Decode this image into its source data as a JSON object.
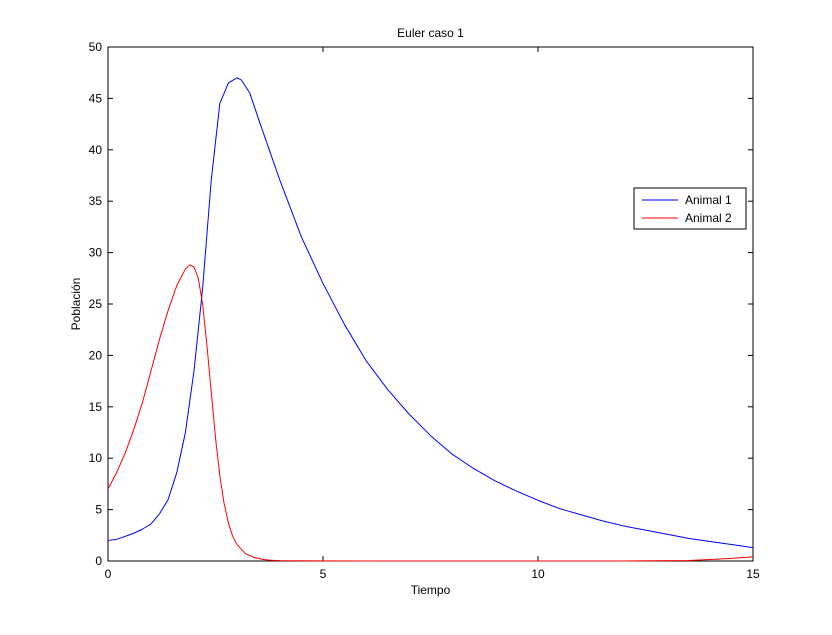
{
  "chart_data": {
    "type": "line",
    "title": "Euler caso 1",
    "xlabel": "Tiempo",
    "ylabel": "Población",
    "xlim": [
      0,
      15
    ],
    "ylim": [
      0,
      50
    ],
    "xticks": [
      0,
      5,
      10,
      15
    ],
    "yticks": [
      0,
      5,
      10,
      15,
      20,
      25,
      30,
      35,
      40,
      45,
      50
    ],
    "grid": false,
    "legend_position": "right",
    "series": [
      {
        "name": "Animal 1",
        "color": "#0000ff",
        "x": [
          0,
          0.2,
          0.4,
          0.6,
          0.8,
          1.0,
          1.2,
          1.4,
          1.6,
          1.8,
          2.0,
          2.2,
          2.4,
          2.6,
          2.8,
          3.0,
          3.1,
          3.3,
          3.5,
          3.75,
          4.0,
          4.5,
          5.0,
          5.5,
          6.0,
          6.5,
          7.0,
          7.5,
          8.0,
          8.5,
          9.0,
          9.5,
          10.0,
          10.5,
          11.0,
          11.5,
          12.0,
          12.5,
          13.0,
          13.5,
          14.0,
          14.5,
          15.0
        ],
        "y": [
          2.0,
          2.1,
          2.4,
          2.7,
          3.1,
          3.6,
          4.6,
          6.0,
          8.6,
          12.5,
          18.5,
          26.5,
          37.0,
          44.5,
          46.5,
          47.0,
          46.8,
          45.5,
          43.0,
          40.0,
          37.0,
          31.5,
          27.0,
          23.0,
          19.5,
          16.7,
          14.3,
          12.2,
          10.4,
          9.0,
          7.8,
          6.8,
          5.9,
          5.1,
          4.5,
          3.9,
          3.4,
          3.0,
          2.6,
          2.2,
          1.9,
          1.6,
          1.3
        ]
      },
      {
        "name": "Animal 2",
        "color": "#ff0000",
        "x": [
          0,
          0.2,
          0.4,
          0.6,
          0.8,
          1.0,
          1.2,
          1.4,
          1.6,
          1.8,
          1.9,
          2.0,
          2.1,
          2.2,
          2.3,
          2.4,
          2.5,
          2.6,
          2.7,
          2.8,
          2.9,
          3.0,
          3.2,
          3.4,
          3.6,
          3.8,
          4.0,
          4.5,
          5.0,
          6.0,
          8.0,
          10.0,
          12.0,
          13.5,
          14.0,
          14.5,
          15.0
        ],
        "y": [
          7.0,
          8.6,
          10.5,
          12.8,
          15.4,
          18.5,
          21.6,
          24.4,
          26.8,
          28.4,
          28.8,
          28.6,
          27.5,
          25.0,
          21.0,
          16.5,
          12.0,
          8.3,
          5.6,
          3.7,
          2.4,
          1.6,
          0.7,
          0.35,
          0.15,
          0.07,
          0.04,
          0.02,
          0.01,
          0.0,
          0.0,
          0.0,
          0.0,
          0.05,
          0.15,
          0.25,
          0.4
        ]
      }
    ]
  }
}
